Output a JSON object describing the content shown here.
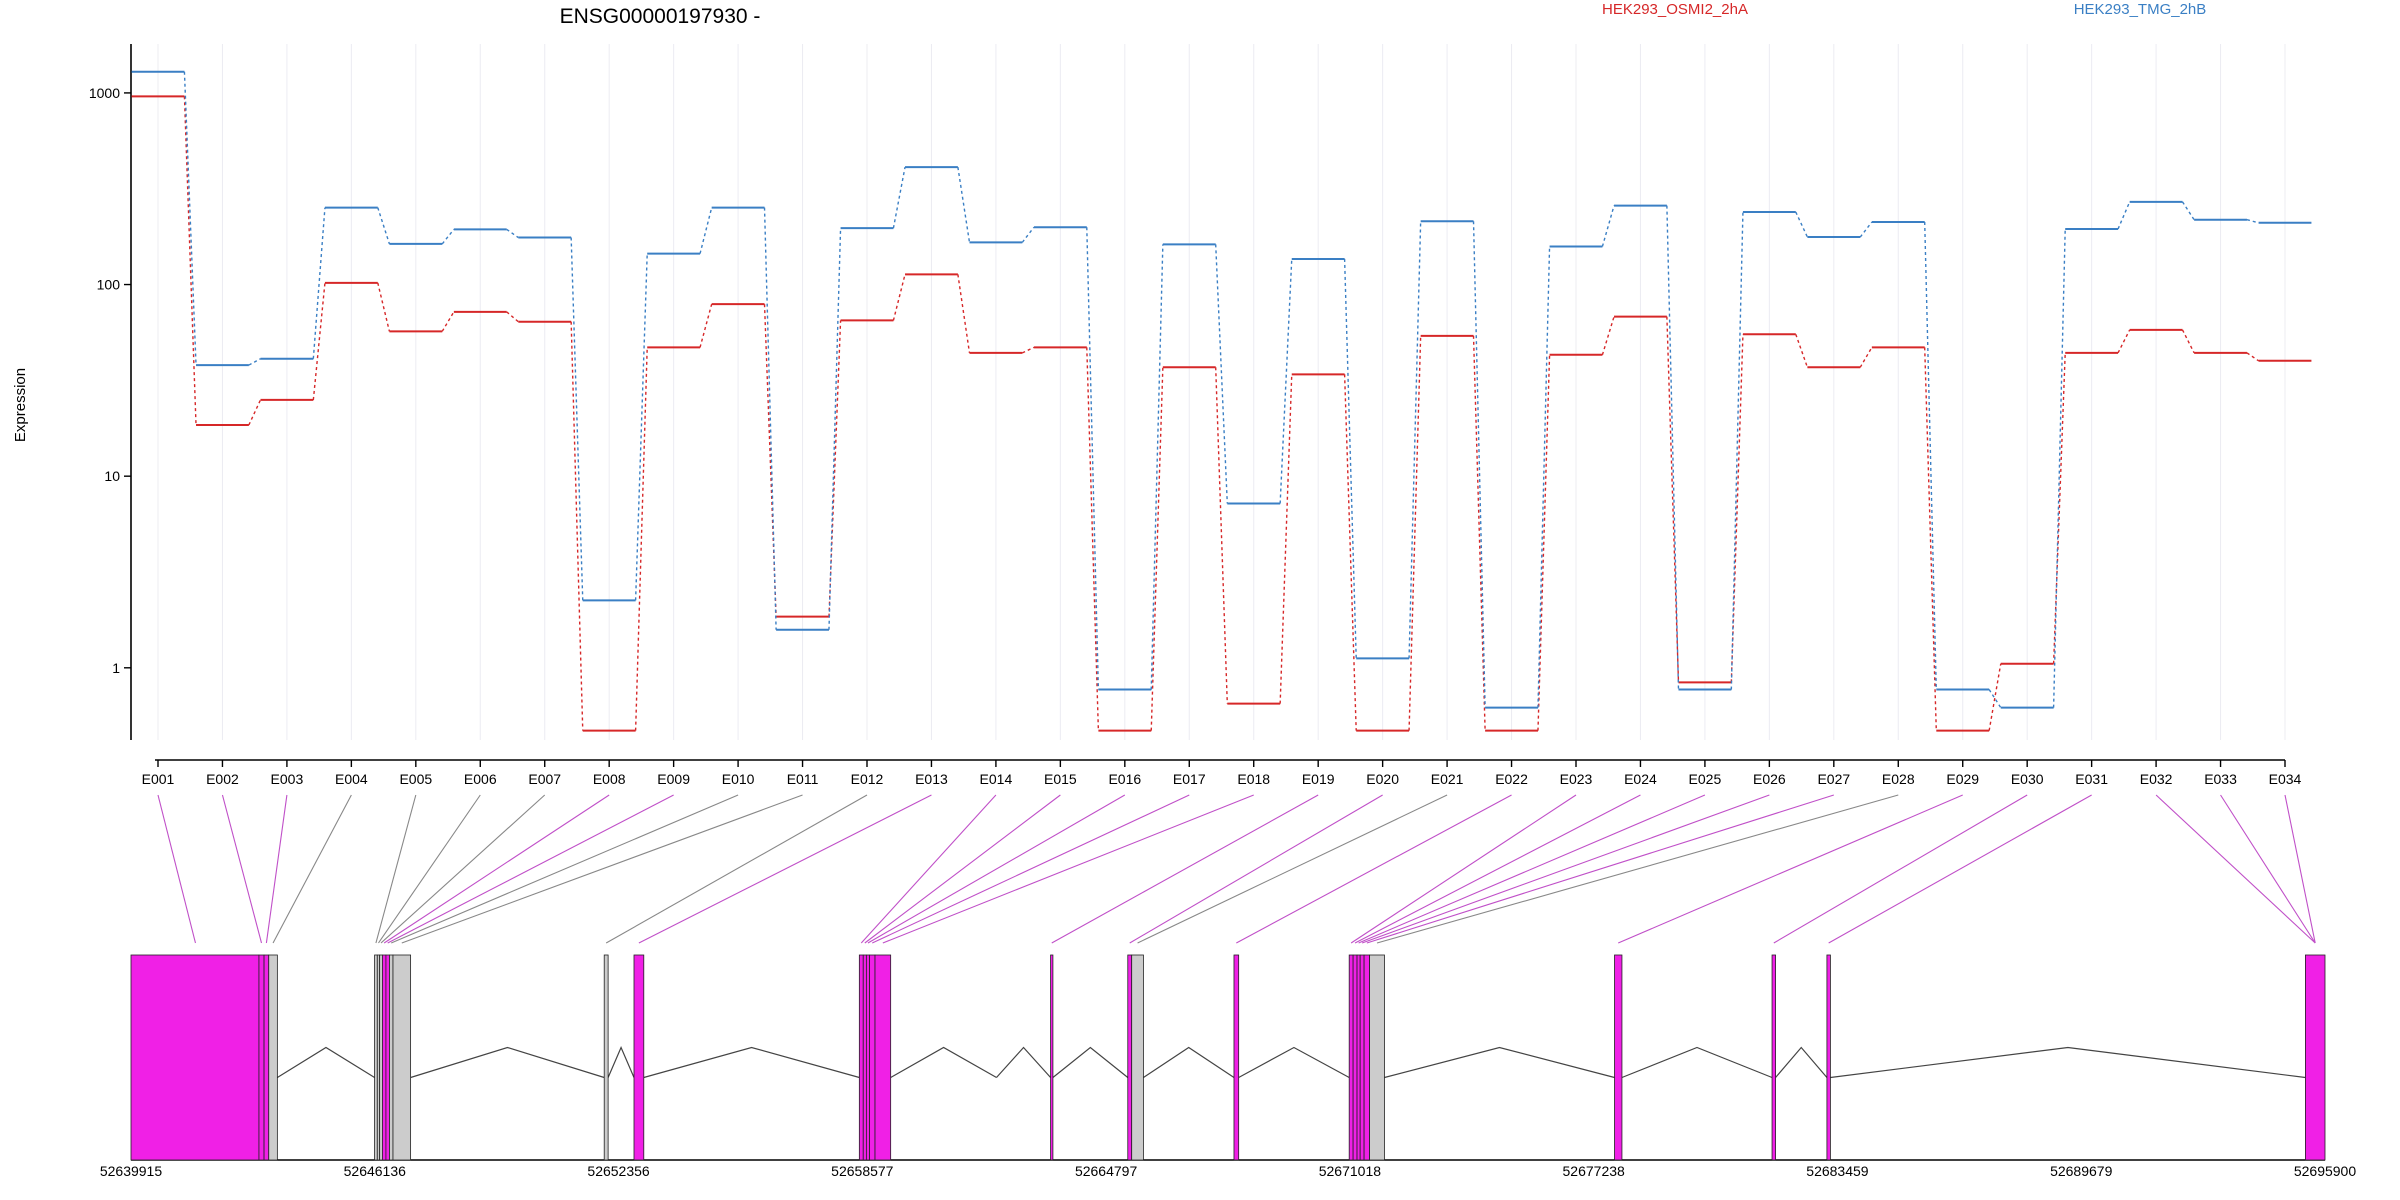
{
  "chart_data": {
    "type": "line",
    "title": "ENSG00000197930 -",
    "ylabel": "Expression",
    "xlabel": "",
    "yscale": "log",
    "ylim": [
      0.42,
      1800
    ],
    "y_ticks": [
      "1",
      "10",
      "100",
      "1000"
    ],
    "y_tick_values": [
      1,
      10,
      100,
      1000
    ],
    "categories": [
      "E001",
      "E002",
      "E003",
      "E004",
      "E005",
      "E006",
      "E007",
      "E008",
      "E009",
      "E010",
      "E011",
      "E012",
      "E013",
      "E014",
      "E015",
      "E016",
      "E017",
      "E018",
      "E019",
      "E020",
      "E021",
      "E022",
      "E023",
      "E024",
      "E025",
      "E026",
      "E027",
      "E028",
      "E029",
      "E030",
      "E031",
      "E032",
      "E033",
      "E034"
    ],
    "series": [
      {
        "name": "HEK293_OSMI2_2hA",
        "color": "#d62728",
        "values": [
          960,
          18.5,
          25,
          102,
          57,
          72,
          64,
          0.47,
          47,
          79,
          1.85,
          65,
          113,
          44,
          47,
          0.47,
          37,
          0.65,
          34,
          0.47,
          54,
          0.47,
          43,
          68,
          0.84,
          55,
          37,
          47,
          0.47,
          1.05,
          44,
          58,
          44,
          40
        ]
      },
      {
        "name": "HEK293_TMG_2hB",
        "color": "#3a7fc4",
        "values": [
          1290,
          38,
          41,
          252,
          163,
          194,
          176,
          2.25,
          145,
          252,
          1.58,
          197,
          410,
          166,
          199,
          0.77,
          162,
          7.2,
          136,
          1.12,
          214,
          0.62,
          158,
          258,
          0.77,
          239,
          177,
          212,
          0.77,
          0.62,
          195,
          270,
          218,
          210
        ]
      }
    ],
    "legend": "top",
    "grid": "vertical",
    "gene_model": {
      "coord_labels": [
        "52639915",
        "52646136",
        "52652356",
        "52658577",
        "52664797",
        "52671018",
        "52677238",
        "52683459",
        "52689679",
        "52695900"
      ],
      "coord_range": [
        52639915,
        52695900
      ],
      "exon_color": "#f020e6",
      "nonsignificant_color": "#cccccc",
      "exons": [
        {
          "id": "E001",
          "start": 52639915,
          "end": 52643180,
          "significant": true
        },
        {
          "id": "E002",
          "start": 52643180,
          "end": 52643310,
          "significant": true
        },
        {
          "id": "E003",
          "start": 52643310,
          "end": 52643430,
          "significant": true
        },
        {
          "id": "E004",
          "start": 52643430,
          "end": 52643650,
          "significant": false
        },
        {
          "id": "E005",
          "start": 52646130,
          "end": 52646200,
          "significant": false
        },
        {
          "id": "E006",
          "start": 52646200,
          "end": 52646260,
          "significant": false
        },
        {
          "id": "E007",
          "start": 52646260,
          "end": 52646330,
          "significant": false
        },
        {
          "id": "E008",
          "start": 52646330,
          "end": 52646420,
          "significant": true
        },
        {
          "id": "E009",
          "start": 52646420,
          "end": 52646510,
          "significant": true
        },
        {
          "id": "E010",
          "start": 52646510,
          "end": 52646600,
          "significant": false
        },
        {
          "id": "E011",
          "start": 52646600,
          "end": 52647050,
          "significant": false
        },
        {
          "id": "E012",
          "start": 52651990,
          "end": 52652090,
          "significant": false
        },
        {
          "id": "E013",
          "start": 52652750,
          "end": 52653000,
          "significant": true
        },
        {
          "id": "E014",
          "start": 52658500,
          "end": 52658600,
          "significant": true
        },
        {
          "id": "E015",
          "start": 52658600,
          "end": 52658680,
          "significant": true
        },
        {
          "id": "E016",
          "start": 52658680,
          "end": 52658760,
          "significant": true
        },
        {
          "id": "E017",
          "start": 52658760,
          "end": 52658900,
          "significant": true
        },
        {
          "id": "E018",
          "start": 52658900,
          "end": 52659300,
          "significant": true
        },
        {
          "id": "E019",
          "start": 52663380,
          "end": 52663440,
          "significant": true
        },
        {
          "id": "E020",
          "start": 52665350,
          "end": 52665450,
          "significant": true
        },
        {
          "id": "E021",
          "start": 52665450,
          "end": 52665750,
          "significant": false
        },
        {
          "id": "E022",
          "start": 52668060,
          "end": 52668180,
          "significant": true
        },
        {
          "id": "E023",
          "start": 52671000,
          "end": 52671100,
          "significant": true
        },
        {
          "id": "E024",
          "start": 52671100,
          "end": 52671200,
          "significant": true
        },
        {
          "id": "E025",
          "start": 52671200,
          "end": 52671280,
          "significant": true
        },
        {
          "id": "E026",
          "start": 52671280,
          "end": 52671380,
          "significant": true
        },
        {
          "id": "E027",
          "start": 52671380,
          "end": 52671520,
          "significant": true
        },
        {
          "id": "E028",
          "start": 52671520,
          "end": 52671900,
          "significant": false
        },
        {
          "id": "E029",
          "start": 52677770,
          "end": 52677960,
          "significant": true
        },
        {
          "id": "E030",
          "start": 52681790,
          "end": 52681880,
          "significant": true
        },
        {
          "id": "E031",
          "start": 52683190,
          "end": 52683280,
          "significant": true
        },
        {
          "id": "E032",
          "start": 52695400,
          "end": 52695900,
          "significant": true
        }
      ],
      "introns": [
        [
          52643650,
          52646130
        ],
        [
          52647050,
          52651990
        ],
        [
          52652090,
          52652750
        ],
        [
          52653000,
          52658500
        ],
        [
          52659300,
          52662000
        ],
        [
          52662000,
          52663380
        ],
        [
          52663440,
          52665350
        ],
        [
          52665750,
          52668060
        ],
        [
          52668180,
          52671000
        ],
        [
          52671900,
          52677770
        ],
        [
          52677960,
          52681790
        ],
        [
          52681880,
          52683190
        ],
        [
          52683280,
          52695400
        ]
      ],
      "connector_targets": [
        52641560,
        52643245,
        52643370,
        52643540,
        52646165,
        52646230,
        52646295,
        52646375,
        52646465,
        52646555,
        52646825,
        52652040,
        52652875,
        52658550,
        52658640,
        52658720,
        52658830,
        52659100,
        52663410,
        52665400,
        52665600,
        52668120,
        52671050,
        52671150,
        52671240,
        52671330,
        52671450,
        52671710,
        52677865,
        52681835,
        52683235,
        52695650,
        52695650,
        52695650
      ]
    }
  }
}
